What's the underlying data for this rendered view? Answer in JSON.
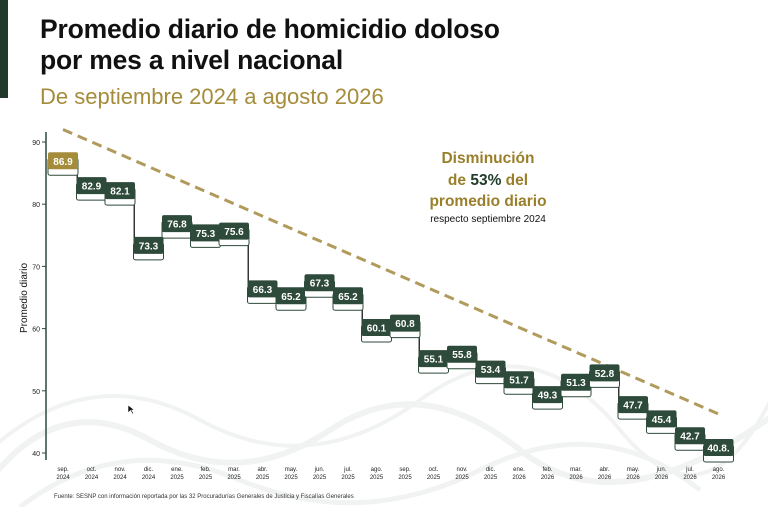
{
  "header": {
    "title_line1": "Promedio diario de homicidio doloso",
    "title_line2": "por mes a nivel nacional",
    "subtitle": "De septiembre 2024 a agosto 2026"
  },
  "annotation": {
    "line1": "Disminución",
    "line2_prefix": "de ",
    "line2_highlight": "53%",
    "line2_suffix": " del",
    "line3": "promedio diario",
    "line4": "respecto septiembre 2024"
  },
  "footer": {
    "source": "Fuente: SESNP con información reportada por las 32 Procuradurías Generales de Justicia y Fiscalías Generales"
  },
  "colors": {
    "dark_green": "#2e4a3b",
    "gold": "#a58c3a",
    "annotation_gold": "#9a7f2a",
    "trend": "#b09a5c"
  },
  "chart_data": {
    "type": "line",
    "style": "step",
    "ylabel": "Promedio diario",
    "xlabel": "",
    "ylim": [
      40,
      90
    ],
    "yticks": [
      40,
      50,
      60,
      70,
      80,
      90
    ],
    "grid": false,
    "categories": [
      [
        "sep.",
        "2024"
      ],
      [
        "oct.",
        "2024"
      ],
      [
        "nov.",
        "2024"
      ],
      [
        "dic.",
        "2024"
      ],
      [
        "ene.",
        "2025"
      ],
      [
        "feb.",
        "2025"
      ],
      [
        "mar.",
        "2025"
      ],
      [
        "abr.",
        "2025"
      ],
      [
        "may.",
        "2025"
      ],
      [
        "jun.",
        "2025"
      ],
      [
        "jul.",
        "2025"
      ],
      [
        "ago.",
        "2025"
      ],
      [
        "sep.",
        "2025"
      ],
      [
        "oct.",
        "2025"
      ],
      [
        "nov.",
        "2025"
      ],
      [
        "dic.",
        "2025"
      ],
      [
        "ene.",
        "2026"
      ],
      [
        "feb.",
        "2026"
      ],
      [
        "mar.",
        "2026"
      ],
      [
        "abr.",
        "2026"
      ],
      [
        "may.",
        "2026"
      ],
      [
        "jun.",
        "2026"
      ],
      [
        "jul.",
        "2026"
      ],
      [
        "ago.",
        "2026"
      ]
    ],
    "values": [
      86.9,
      82.9,
      82.1,
      73.3,
      76.8,
      75.3,
      75.6,
      66.3,
      65.2,
      67.3,
      65.2,
      60.1,
      60.8,
      55.1,
      55.8,
      53.4,
      51.7,
      49.3,
      51.3,
      52.8,
      47.7,
      45.4,
      42.7,
      40.8
    ],
    "data_labels": [
      "86.9",
      "82.9",
      "82.1",
      "73.3",
      "76.8",
      "75.3",
      "75.6",
      "66.3",
      "65.2",
      "67.3",
      "65.2",
      "60.1",
      "60.8",
      "55.1",
      "55.8",
      "53.4",
      "51.7",
      "49.3",
      "51.3",
      "52.8",
      "47.7",
      "45.4",
      "42.7",
      "40.8."
    ],
    "trend_line": {
      "from": [
        0,
        92
      ],
      "to": [
        23,
        46
      ]
    }
  }
}
